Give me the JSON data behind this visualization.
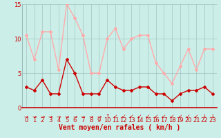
{
  "x": [
    0,
    1,
    2,
    3,
    4,
    5,
    6,
    7,
    8,
    9,
    10,
    11,
    12,
    13,
    14,
    15,
    16,
    17,
    18,
    19,
    20,
    21,
    22,
    23
  ],
  "mean_wind": [
    3,
    2.5,
    4,
    2,
    2,
    7,
    5,
    2,
    2,
    2,
    4,
    3,
    2.5,
    2.5,
    3,
    3,
    2,
    2,
    1,
    2,
    2.5,
    2.5,
    3,
    2
  ],
  "gust_wind": [
    10.5,
    7,
    11,
    11,
    5.5,
    15,
    13,
    10.5,
    5,
    5,
    10,
    11.5,
    8.5,
    10,
    10.5,
    10.5,
    6.5,
    5,
    3.5,
    6,
    8.5,
    5.5,
    8.5,
    8.5
  ],
  "mean_color": "#cc0000",
  "gust_color": "#ffaaaa",
  "bg_color": "#cceee8",
  "grid_color": "#99bbbb",
  "xlabel": "Vent moyen/en rafales ( km/h )",
  "ylim": [
    0,
    15
  ],
  "xlim": [
    -0.5,
    23.5
  ],
  "yticks": [
    0,
    5,
    10,
    15
  ],
  "xticks": [
    0,
    1,
    2,
    3,
    4,
    5,
    6,
    7,
    8,
    9,
    10,
    11,
    12,
    13,
    14,
    15,
    16,
    17,
    18,
    19,
    20,
    21,
    22,
    23
  ],
  "marker": "D",
  "markersize": 2,
  "linewidth": 1.0,
  "xlabel_fontsize": 7,
  "tick_fontsize": 6,
  "tick_color": "#cc0000",
  "arrow_symbols": [
    "→",
    "→",
    "→",
    "→",
    "→",
    "→",
    "→",
    "→",
    "→",
    "→",
    "↑",
    "↙",
    "↙",
    "↙",
    "↙",
    "↙",
    "↙",
    "↙",
    "↙",
    "↙",
    "↙",
    "↙",
    "↓",
    "↓"
  ]
}
